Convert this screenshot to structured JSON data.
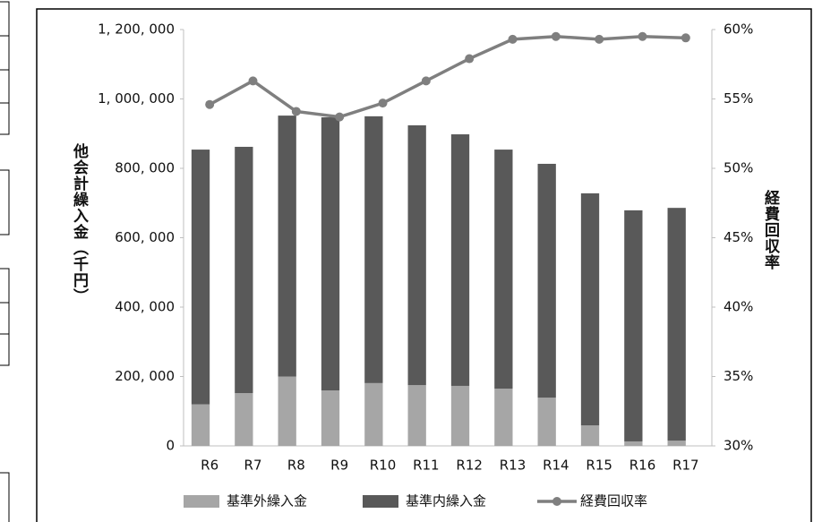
{
  "chart_data": {
    "type": "bar-line",
    "categories": [
      "R6",
      "R7",
      "R8",
      "R9",
      "R10",
      "R11",
      "R12",
      "R13",
      "R14",
      "R15",
      "R16",
      "R17"
    ],
    "y_label": "他会計繰入金（千円）",
    "y2_label": "経費回収率",
    "series": [
      {
        "name": "基準外繰入金",
        "color": "#a6a6a6",
        "values": [
          120000,
          152000,
          200000,
          160000,
          181000,
          175000,
          173000,
          165000,
          139000,
          59000,
          13000,
          15000
        ]
      },
      {
        "name": "基準内繰入金",
        "color": "#595959",
        "values": [
          734000,
          710000,
          752000,
          787000,
          769000,
          749000,
          725000,
          689000,
          674000,
          669000,
          666000,
          671000
        ]
      },
      {
        "name": "経費回収率",
        "color": "#7f7f7f",
        "axis": "y2",
        "values": [
          54.6,
          56.3,
          54.1,
          53.7,
          54.7,
          56.3,
          57.9,
          59.3,
          59.5,
          59.3,
          59.5,
          59.4
        ]
      }
    ],
    "ylim": [
      0,
      1200000
    ],
    "yticks": [
      0,
      {
        "value": 200000,
        "label": "200, 000"
      },
      {
        "value": 400000,
        "label": "400, 000"
      },
      {
        "value": 600000,
        "label": "600, 000"
      },
      {
        "value": 800000,
        "label": "800, 000"
      },
      {
        "value": 1000000,
        "label": "1, 000, 000"
      },
      {
        "value": 1200000,
        "label": "1, 200, 000"
      }
    ],
    "y2lim": [
      30,
      60
    ],
    "y2ticks": [
      {
        "value": 30,
        "label": "30%"
      },
      {
        "value": 35,
        "label": "35%"
      },
      {
        "value": 40,
        "label": "40%"
      },
      {
        "value": 45,
        "label": "45%"
      },
      {
        "value": 50,
        "label": "50%"
      },
      {
        "value": 55,
        "label": "55%"
      },
      {
        "value": 60,
        "label": "60%"
      }
    ],
    "legend": "bottom"
  }
}
